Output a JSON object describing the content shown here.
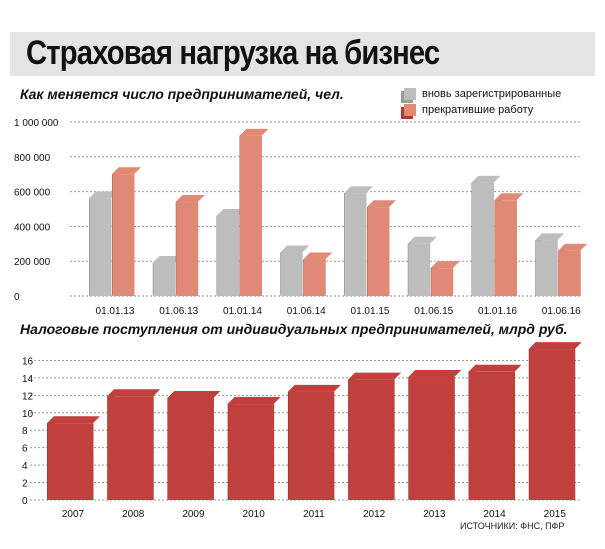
{
  "title": "Страховая нагрузка на бизнес",
  "source": "ИСТОЧНИКИ: ФНС, ПФР",
  "chart_data": [
    {
      "type": "bar",
      "title": "Как меняется число предпринимателей, чел.",
      "categories": [
        "01.01.13",
        "01.06.13",
        "01.01.14",
        "01.06.14",
        "01.01.15",
        "01.06.15",
        "01.01.16",
        "01.06.16"
      ],
      "series": [
        {
          "name": "вновь зарегистрированные",
          "color": "#bdbdbd",
          "values": [
            560000,
            190000,
            460000,
            250000,
            590000,
            300000,
            650000,
            320000
          ]
        },
        {
          "name": "прекратившие работу",
          "color": "#e08a76",
          "values": [
            700000,
            540000,
            920000,
            210000,
            510000,
            160000,
            550000,
            260000
          ]
        }
      ],
      "yticks": [
        0,
        200000,
        400000,
        600000,
        800000,
        1000000
      ],
      "ytick_labels": [
        "0",
        "200 000",
        "400 000",
        "600 000",
        "800 000",
        "1 000 000"
      ],
      "ylim": [
        0,
        1000000
      ],
      "grid": true,
      "legend": "top-right"
    },
    {
      "type": "bar",
      "title": "Налоговые поступления от индивидуальных предпринимателей, млрд руб.",
      "categories": [
        "2007",
        "2008",
        "2009",
        "2010",
        "2011",
        "2012",
        "2013",
        "2014",
        "2015"
      ],
      "values": [
        8.8,
        11.9,
        11.7,
        11.0,
        12.4,
        13.8,
        14.1,
        14.7,
        17.3
      ],
      "color": "#c0403e",
      "yticks": [
        0,
        2,
        4,
        6,
        8,
        10,
        12,
        14,
        16
      ],
      "ylim": [
        0,
        18
      ],
      "grid": true
    }
  ]
}
